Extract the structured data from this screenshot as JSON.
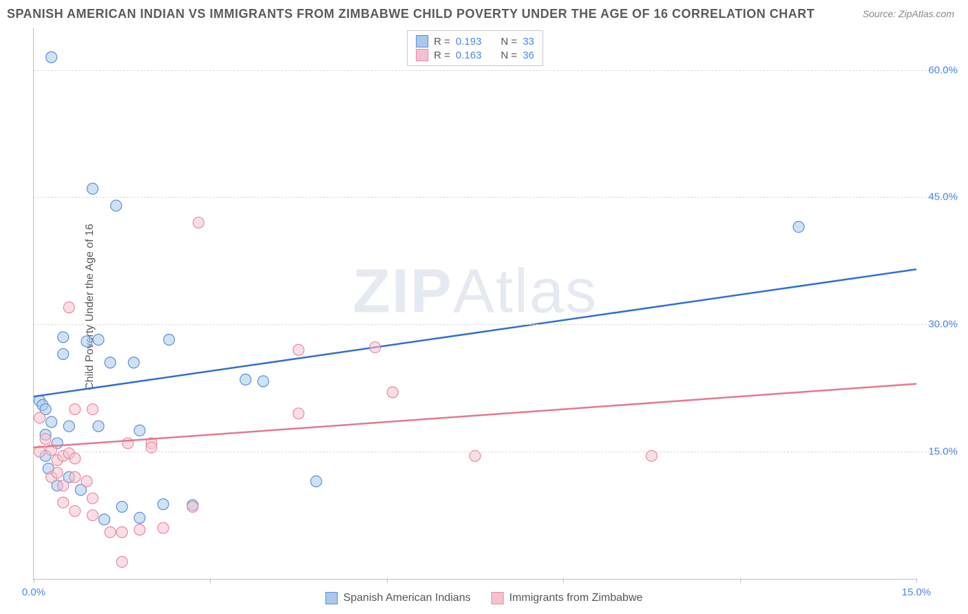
{
  "title": "SPANISH AMERICAN INDIAN VS IMMIGRANTS FROM ZIMBABWE CHILD POVERTY UNDER THE AGE OF 16 CORRELATION CHART",
  "source": "Source: ZipAtlas.com",
  "y_axis_label": "Child Poverty Under the Age of 16",
  "watermark_prefix": "ZIP",
  "watermark_suffix": "Atlas",
  "chart": {
    "type": "scatter",
    "xlim": [
      0,
      15
    ],
    "ylim": [
      0,
      65
    ],
    "x_ticks": [
      0,
      3,
      6,
      9,
      12,
      15
    ],
    "x_tick_labels": [
      "0.0%",
      "",
      "",
      "",
      "",
      "15.0%"
    ],
    "y_ticks": [
      15,
      30,
      45,
      60
    ],
    "y_tick_labels": [
      "15.0%",
      "30.0%",
      "45.0%",
      "60.0%"
    ],
    "grid_color": "#d8d8d8",
    "background_color": "#ffffff",
    "marker_radius": 8,
    "marker_opacity": 0.55,
    "line_width": 2.5,
    "series": [
      {
        "name": "Spanish American Indians",
        "color_fill": "#a9c8ec",
        "color_stroke": "#5b8fd6",
        "line_color": "#2f6fcf",
        "r_value": "0.193",
        "n_value": "33",
        "points": [
          [
            0.3,
            61.5
          ],
          [
            1.0,
            46.0
          ],
          [
            1.4,
            44.0
          ],
          [
            13.0,
            41.5
          ],
          [
            0.5,
            28.5
          ],
          [
            0.9,
            28.0
          ],
          [
            1.1,
            28.2
          ],
          [
            2.3,
            28.2
          ],
          [
            0.5,
            26.5
          ],
          [
            1.3,
            25.5
          ],
          [
            1.7,
            25.5
          ],
          [
            3.6,
            23.5
          ],
          [
            3.9,
            23.3
          ],
          [
            0.1,
            21.0
          ],
          [
            0.15,
            20.5
          ],
          [
            0.2,
            20.0
          ],
          [
            0.3,
            18.5
          ],
          [
            0.6,
            18.0
          ],
          [
            1.1,
            18.0
          ],
          [
            1.8,
            17.5
          ],
          [
            0.2,
            17.0
          ],
          [
            0.4,
            16.0
          ],
          [
            0.2,
            14.5
          ],
          [
            0.25,
            13.0
          ],
          [
            0.6,
            12.0
          ],
          [
            0.4,
            11.0
          ],
          [
            0.8,
            10.5
          ],
          [
            4.8,
            11.5
          ],
          [
            1.5,
            8.5
          ],
          [
            1.8,
            7.2
          ],
          [
            2.2,
            8.8
          ],
          [
            2.7,
            8.7
          ],
          [
            1.2,
            7.0
          ]
        ],
        "trend": {
          "x1": 0,
          "y1": 21.5,
          "x2": 15,
          "y2": 36.5
        }
      },
      {
        "name": "Immigrants from Zimbabwe",
        "color_fill": "#f4c2ce",
        "color_stroke": "#e48ba3",
        "line_color": "#e67790",
        "r_value": "0.163",
        "n_value": "36",
        "points": [
          [
            2.8,
            42.0
          ],
          [
            0.6,
            32.0
          ],
          [
            4.5,
            27.0
          ],
          [
            5.8,
            27.3
          ],
          [
            6.1,
            22.0
          ],
          [
            4.5,
            19.5
          ],
          [
            0.1,
            19.0
          ],
          [
            0.7,
            20.0
          ],
          [
            1.0,
            20.0
          ],
          [
            1.6,
            16.0
          ],
          [
            2.0,
            16.0
          ],
          [
            0.1,
            15.0
          ],
          [
            0.3,
            15.2
          ],
          [
            0.4,
            14.0
          ],
          [
            0.5,
            14.5
          ],
          [
            0.6,
            14.8
          ],
          [
            0.7,
            14.2
          ],
          [
            7.5,
            14.5
          ],
          [
            10.5,
            14.5
          ],
          [
            0.3,
            12.0
          ],
          [
            0.4,
            12.5
          ],
          [
            0.5,
            11.0
          ],
          [
            0.7,
            12.0
          ],
          [
            0.9,
            11.5
          ],
          [
            1.0,
            9.5
          ],
          [
            0.5,
            9.0
          ],
          [
            0.7,
            8.0
          ],
          [
            1.0,
            7.5
          ],
          [
            1.3,
            5.5
          ],
          [
            1.5,
            5.5
          ],
          [
            1.8,
            5.8
          ],
          [
            1.5,
            2.0
          ],
          [
            2.2,
            6.0
          ],
          [
            2.7,
            8.5
          ],
          [
            2.0,
            15.5
          ],
          [
            0.2,
            16.5
          ]
        ],
        "trend": {
          "x1": 0,
          "y1": 15.5,
          "x2": 15,
          "y2": 23.0
        }
      }
    ]
  },
  "legend_top_label_r": "R =",
  "legend_top_label_n": "N ="
}
